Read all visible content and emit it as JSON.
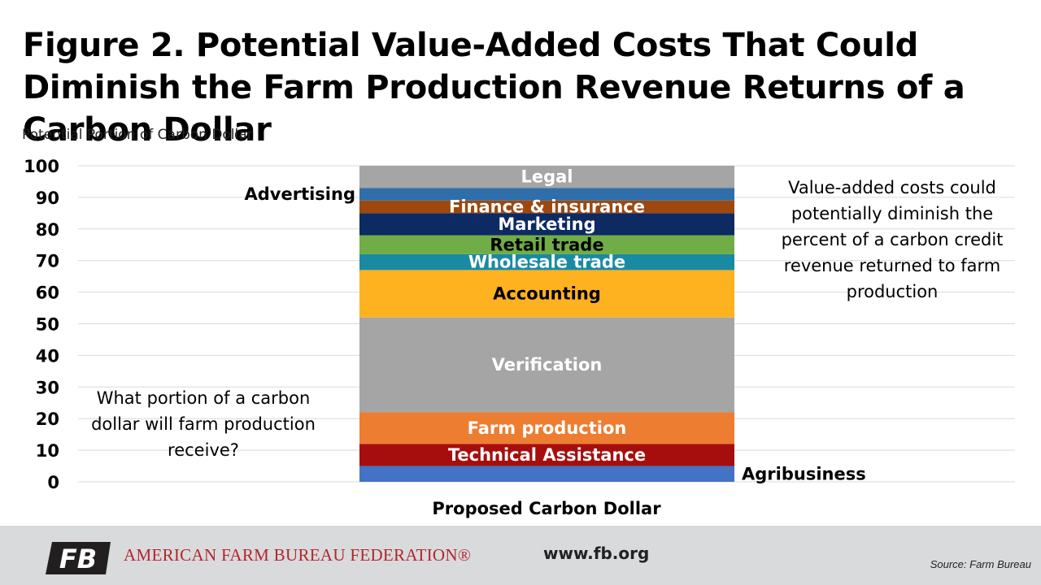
{
  "title": "Figure 2. Potential Value-Added Costs That Could Diminish the Farm Production Revenue Returns of a Carbon Dollar",
  "annotations": {
    "left": "What portion of a carbon dollar will farm production receive?",
    "right": "Value-added costs could potentially diminish the percent of a carbon credit revenue returned to farm production"
  },
  "footer": {
    "org_name": "AMERICAN FARM BUREAU FEDERATION®",
    "logo_text": "FB",
    "website": "www.fb.org",
    "source": "Source: Farm Bureau"
  },
  "chart_data": {
    "type": "bar",
    "stacked": true,
    "orientation": "vertical",
    "title": "",
    "ylabel": "Potential Portion of Carbon Dollar",
    "xlabel": "",
    "categories": [
      "Proposed Carbon Dollar"
    ],
    "ylim": [
      0,
      100
    ],
    "yticks": [
      0,
      10,
      20,
      30,
      40,
      50,
      60,
      70,
      80,
      90,
      100
    ],
    "grid": true,
    "legend": "none",
    "series": [
      {
        "name": "Agribusiness",
        "values": [
          5
        ],
        "color": "#4472c4",
        "label_color": "#000000",
        "label_position": "outside-right"
      },
      {
        "name": "Technical Assistance",
        "values": [
          7
        ],
        "color": "#a60e0e",
        "label_color": "#ffffff",
        "label_position": "inside"
      },
      {
        "name": "Farm production",
        "values": [
          10
        ],
        "color": "#ed7d31",
        "label_color": "#ffffff",
        "label_position": "inside"
      },
      {
        "name": "Verification",
        "values": [
          30
        ],
        "color": "#a5a5a5",
        "label_color": "#ffffff",
        "label_position": "inside"
      },
      {
        "name": "Accounting",
        "values": [
          15
        ],
        "color": "#ffb220",
        "label_color": "#000000",
        "label_position": "inside"
      },
      {
        "name": "Wholesale trade",
        "values": [
          5
        ],
        "color": "#1a8aa3",
        "label_color": "#ffffff",
        "label_position": "inside"
      },
      {
        "name": "Retail trade",
        "values": [
          6
        ],
        "color": "#70ad47",
        "label_color": "#000000",
        "label_position": "inside"
      },
      {
        "name": "Marketing",
        "values": [
          7
        ],
        "color": "#0d2a62",
        "label_color": "#ffffff",
        "label_position": "inside"
      },
      {
        "name": "Finance & insurance",
        "values": [
          4
        ],
        "color": "#9e480e",
        "label_color": "#ffffff",
        "label_position": "inside"
      },
      {
        "name": "Advertising",
        "values": [
          4
        ],
        "color": "#2f6ea8",
        "label_color": "#000000",
        "label_position": "outside-left"
      },
      {
        "name": "Legal",
        "values": [
          7
        ],
        "color": "#a5a5a5",
        "label_color": "#ffffff",
        "label_position": "inside"
      }
    ]
  }
}
